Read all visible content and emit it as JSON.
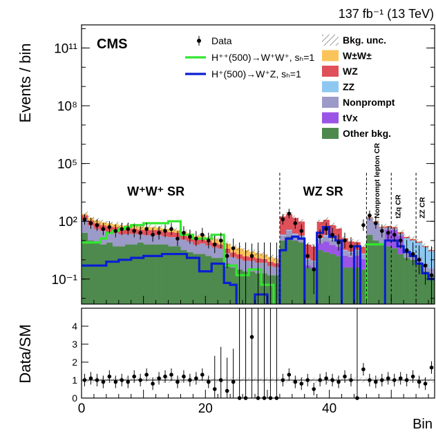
{
  "chart_data": {
    "type": "histogram",
    "experiment_label": "CMS",
    "lumi_label": "137 fb⁻¹ (13 TeV)",
    "ylabel": "Events / bin",
    "ratio_ylabel": "Data/SM",
    "xlabel": "Bin",
    "xlim": [
      0,
      57
    ],
    "log_y": true,
    "ylim_log10": [
      -2.3,
      12.2
    ],
    "y_ticks": [
      {
        "label": "10¹¹",
        "log10": 11
      },
      {
        "label": "10⁸",
        "log10": 8
      },
      {
        "label": "10⁵",
        "log10": 5
      },
      {
        "label": "10²",
        "log10": 2
      },
      {
        "label": "10⁻¹",
        "log10": -1
      }
    ],
    "x_ticks": [
      0,
      20,
      40
    ],
    "ratio_ylim": [
      0,
      5
    ],
    "ratio_y_ticks": [
      0,
      1,
      2,
      3,
      4
    ],
    "region_labels": [
      {
        "text": "W⁺W⁺ SR",
        "x": 12
      },
      {
        "text": "WZ SR",
        "x": 39
      }
    ],
    "cr_labels": [
      {
        "text": "Nonprompt lepton CR",
        "x": 48.1
      },
      {
        "text": "tZq CR",
        "x": 51.5
      },
      {
        "text": "ZZ CR",
        "x": 55.4
      }
    ],
    "region_boundaries": [
      32,
      46,
      50,
      54
    ],
    "legend_left": [
      {
        "label": "Data",
        "kind": "data"
      },
      {
        "label": "H⁺⁺(500)→W⁺W⁺, sₕ=1",
        "kind": "line",
        "color": "#33e62e"
      },
      {
        "label": "H⁺(500)→W⁺Z, sₕ=1",
        "kind": "line",
        "color": "#0a1ed2"
      }
    ],
    "legend_right": [
      {
        "label": "Bkg. unc.",
        "kind": "hatch"
      },
      {
        "label": "W±W±",
        "kind": "fill",
        "color": "#fbc45a"
      },
      {
        "label": "WZ",
        "kind": "fill",
        "color": "#e0505a"
      },
      {
        "label": "ZZ",
        "kind": "fill",
        "color": "#8ec8f0"
      },
      {
        "label": "Nonprompt",
        "kind": "fill",
        "color": "#9c9ac8"
      },
      {
        "label": "tVx",
        "kind": "fill",
        "color": "#9a55e6"
      },
      {
        "label": "Other bkg.",
        "kind": "fill",
        "color": "#4e8a4e"
      }
    ],
    "stack_order": [
      "Other bkg.",
      "tVx",
      "Nonprompt",
      "ZZ",
      "WZ",
      "W±W±"
    ],
    "series": [
      {
        "name": "Other bkg.",
        "log10": [
          1.4,
          1.0,
          0.9,
          0.8,
          0.9,
          0.7,
          0.7,
          0.8,
          0.8,
          0.9,
          0.8,
          0.8,
          0.8,
          0.8,
          0.7,
          0.7,
          0.5,
          0.4,
          0.3,
          0.3,
          0.2,
          0.1,
          0.1,
          -0.2,
          -0.4,
          -0.5,
          -0.6,
          -0.6,
          -0.7,
          -0.7,
          -0.8,
          -0.8,
          1.0,
          1.2,
          1.0,
          0.9,
          -0.4,
          -0.5,
          0.5,
          0.4,
          0.3,
          0.2,
          -0.4,
          -0.4,
          -0.4,
          -0.5,
          1.3,
          1.0,
          0.8,
          0.7,
          0.6,
          0.3,
          0.1,
          0.0,
          -0.2,
          -0.6,
          -0.8
        ]
      },
      {
        "name": "tVx",
        "log10": [
          -3,
          -3,
          -3,
          -3,
          -3,
          -3,
          -3,
          -3,
          -3,
          -3,
          -3,
          -3,
          -3,
          -3,
          -3,
          -3,
          -3,
          -3,
          -3,
          -3,
          -3,
          -3,
          -3,
          -3,
          -3,
          -3,
          -3,
          -3,
          -3,
          -3,
          -3,
          -3,
          -0.5,
          -0.3,
          -0.3,
          -0.3,
          -0.9,
          -1.0,
          0.6,
          0.8,
          0.6,
          0.5,
          0.1,
          0.0,
          0.1,
          -0.1,
          -3,
          -3,
          -3,
          1.5,
          1.5,
          1.2,
          -3,
          -3,
          -3,
          -3,
          -3
        ]
      },
      {
        "name": "Nonprompt",
        "log10": [
          2.0,
          1.7,
          1.5,
          1.4,
          1.3,
          1.3,
          1.2,
          1.2,
          1.2,
          1.1,
          1.1,
          1.1,
          1.1,
          1.0,
          1.0,
          1.0,
          0.9,
          0.8,
          0.6,
          0.7,
          0.6,
          0.5,
          0.4,
          0.2,
          0.0,
          -0.1,
          -0.2,
          -0.2,
          -0.3,
          -0.3,
          -0.5,
          -0.6,
          0.9,
          1.2,
          1.0,
          0.9,
          -0.3,
          -0.4,
          0.7,
          0.9,
          0.7,
          0.6,
          0.1,
          0.0,
          0.1,
          -0.1,
          2.1,
          1.9,
          1.6,
          1.0,
          0.9,
          0.7,
          0.3,
          0.1,
          -0.1,
          -0.4,
          -0.7
        ]
      },
      {
        "name": "ZZ",
        "log10": [
          -3,
          -3,
          -3,
          -3,
          -3,
          -3,
          -3,
          -3,
          -3,
          -3,
          -3,
          -3,
          -3,
          -3,
          -3,
          -3,
          -3,
          -3,
          -3,
          -3,
          -3,
          -3,
          -3,
          -3,
          -3,
          -3,
          -3,
          -3,
          -3,
          -3,
          -3,
          -3,
          0.3,
          0.6,
          0.4,
          0.2,
          -1.0,
          -1.1,
          0.2,
          0.4,
          0.3,
          0.2,
          -0.5,
          -0.6,
          -0.5,
          -0.7,
          -3,
          -3,
          -3,
          -3,
          -3,
          -3,
          1.0,
          0.9,
          0.8,
          0.6,
          0.4
        ]
      },
      {
        "name": "WZ",
        "log10": [
          1.9,
          1.7,
          1.6,
          1.5,
          1.4,
          1.4,
          1.3,
          1.3,
          1.3,
          1.2,
          1.2,
          1.2,
          1.2,
          1.1,
          1.1,
          1.0,
          0.9,
          0.8,
          0.7,
          0.7,
          0.6,
          0.5,
          0.4,
          0.2,
          0.0,
          -0.1,
          -0.2,
          -0.3,
          -0.3,
          -0.4,
          -0.5,
          -0.6,
          2.2,
          2.3,
          2.1,
          1.9,
          0.7,
          0.6,
          1.9,
          2.0,
          1.7,
          1.5,
          1.0,
          0.8,
          0.7,
          0.4,
          1.1,
          0.9,
          0.7,
          0.9,
          0.8,
          0.6,
          0.3,
          0.2,
          0.0,
          -0.3,
          -0.5
        ]
      },
      {
        "name": "W±W±",
        "log10": [
          1.6,
          1.6,
          1.5,
          1.4,
          1.4,
          1.3,
          1.3,
          1.3,
          1.3,
          1.2,
          1.2,
          1.2,
          1.1,
          1.1,
          1.1,
          1.0,
          1.0,
          0.9,
          0.8,
          0.8,
          0.7,
          0.7,
          0.6,
          0.5,
          0.4,
          0.3,
          0.2,
          0.1,
          0.0,
          -0.1,
          -0.2,
          -0.3,
          -0.3,
          -0.3,
          -0.4,
          -0.5,
          -0.8,
          -0.9,
          0.0,
          0.0,
          -0.1,
          -0.2,
          -0.6,
          -0.7,
          -0.7,
          -0.8,
          0.8,
          0.6,
          0.4,
          0.3,
          0.2,
          0.1,
          -0.2,
          -0.3,
          -0.5,
          -0.7,
          -0.9
        ]
      },
      {
        "name": "H⁺⁺(500)→W⁺W⁺, sₕ=1",
        "log10": [
          0.9,
          0.9,
          0.9,
          1.1,
          1.4,
          1.5,
          1.6,
          1.7,
          1.8,
          1.8,
          1.9,
          1.9,
          1.9,
          1.9,
          2.0,
          2.0,
          1.3,
          1.3,
          1.1,
          1.1,
          1.1,
          1.3,
          1.3,
          -0.3,
          -0.3,
          -0.8,
          -0.8,
          -0.5,
          -0.5,
          -1.3,
          -1.3,
          -3,
          -3,
          -3,
          -3,
          -3,
          -3,
          -3,
          -3,
          -3,
          -3,
          -3,
          -3,
          -3,
          -3,
          -3,
          0.8,
          0.8,
          0.8,
          -3,
          -3,
          -3,
          -3,
          -3,
          -3,
          -3,
          -3
        ]
      },
      {
        "name": "H⁺(500)→W⁺Z, sₕ=1",
        "log10": [
          -0.3,
          -0.3,
          -0.3,
          -0.3,
          -0.1,
          -0.1,
          0.0,
          0.0,
          0.1,
          0.1,
          0.2,
          0.2,
          0.2,
          0.3,
          0.3,
          0.3,
          0.3,
          0.1,
          0.1,
          -0.6,
          -0.6,
          -0.2,
          -0.2,
          -1.2,
          -1.3,
          -3,
          -3,
          -3,
          -1.8,
          -1.8,
          -3,
          -3,
          0.5,
          1.1,
          1.2,
          1.1,
          -3,
          -3,
          1.4,
          1.7,
          1.2,
          1.0,
          -3,
          -3,
          0.7,
          -3,
          -3,
          -3,
          -3,
          1.0,
          1.0,
          0.7,
          0.4,
          0.2,
          -0.2,
          -0.7,
          -1.0
        ]
      }
    ],
    "data": {
      "log10": [
        2.1,
        1.9,
        1.8,
        1.6,
        1.7,
        1.5,
        1.6,
        1.6,
        1.5,
        1.4,
        1.6,
        1.3,
        1.4,
        1.5,
        1.6,
        1.1,
        1.4,
        1.2,
        1.1,
        1.3,
        1.0,
        0.8,
        1.0,
        0.2,
        0.6,
        -1.5,
        -1.5,
        0.2,
        -1.5,
        -1.5,
        -1.5,
        -1.5,
        2.1,
        2.4,
        1.9,
        1.5,
        0.2,
        -0.5,
        1.2,
        1.6,
        1.3,
        0.9,
        1.0,
        0.7,
        -1.5,
        1.8,
        2.3,
        1.9,
        1.5,
        1.4,
        1.3,
        1.0,
        0.5,
        0.3,
        0.0,
        -0.3,
        -0.8
      ],
      "zero_bins": [
        25,
        26,
        28,
        29,
        30,
        31,
        44
      ],
      "ratio": [
        1.0,
        1.1,
        1.0,
        0.9,
        1.2,
        0.9,
        1.0,
        0.9,
        1.2,
        1.0,
        1.3,
        0.8,
        1.1,
        1.2,
        1.3,
        0.9,
        1.2,
        1.0,
        1.1,
        1.3,
        0.9,
        0.5,
        1.0,
        0.4,
        0.9,
        0.0,
        0.0,
        3.4,
        0.0,
        0.0,
        0.0,
        0.0,
        1.0,
        1.3,
        0.9,
        0.8,
        1.0,
        0.5,
        1.0,
        1.1,
        1.0,
        0.9,
        1.2,
        1.0,
        0.0,
        1.6,
        1.0,
        0.9,
        1.0,
        1.1,
        1.0,
        1.1,
        1.0,
        1.2,
        0.9,
        0.8,
        1.7
      ]
    }
  }
}
